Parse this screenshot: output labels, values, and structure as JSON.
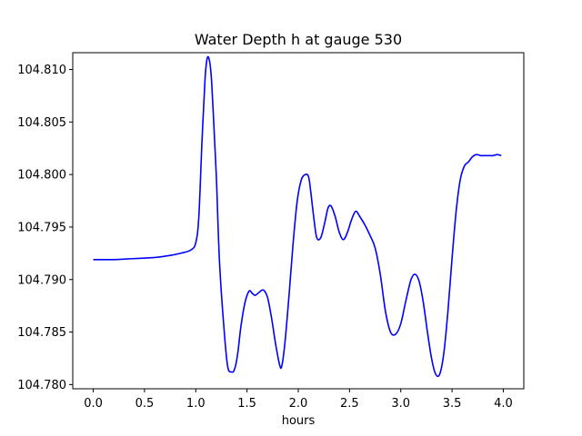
{
  "chart_data": {
    "type": "line",
    "title": "Water Depth h at gauge 530",
    "xlabel": "hours",
    "ylabel": "",
    "xlim": [
      -0.2,
      4.2
    ],
    "ylim": [
      104.7796,
      104.8116
    ],
    "xticks": [
      0.0,
      0.5,
      1.0,
      1.5,
      2.0,
      2.5,
      3.0,
      3.5,
      4.0
    ],
    "xtick_labels": [
      "0.0",
      "0.5",
      "1.0",
      "1.5",
      "2.0",
      "2.5",
      "3.0",
      "3.5",
      "4.0"
    ],
    "yticks": [
      104.78,
      104.785,
      104.79,
      104.795,
      104.8,
      104.805,
      104.81
    ],
    "ytick_labels": [
      "104.780",
      "104.785",
      "104.790",
      "104.795",
      "104.800",
      "104.805",
      "104.810"
    ],
    "grid": false,
    "series": [
      {
        "color": "#0000ff",
        "x": [
          0.0,
          0.2,
          0.4,
          0.6,
          0.75,
          0.85,
          0.95,
          1.0,
          1.03,
          1.06,
          1.09,
          1.11,
          1.13,
          1.15,
          1.17,
          1.2,
          1.23,
          1.27,
          1.31,
          1.35,
          1.38,
          1.41,
          1.44,
          1.48,
          1.52,
          1.55,
          1.58,
          1.62,
          1.66,
          1.7,
          1.74,
          1.78,
          1.82,
          1.84,
          1.87,
          1.91,
          1.95,
          1.99,
          2.03,
          2.07,
          2.1,
          2.12,
          2.15,
          2.18,
          2.22,
          2.26,
          2.29,
          2.32,
          2.36,
          2.4,
          2.44,
          2.48,
          2.52,
          2.56,
          2.6,
          2.65,
          2.7,
          2.75,
          2.8,
          2.85,
          2.9,
          2.95,
          3.0,
          3.05,
          3.1,
          3.14,
          3.18,
          3.22,
          3.26,
          3.3,
          3.34,
          3.38,
          3.42,
          3.46,
          3.5,
          3.54,
          3.58,
          3.62,
          3.66,
          3.7,
          3.74,
          3.78,
          3.82,
          3.86,
          3.9,
          3.94,
          3.98
        ],
        "values": [
          104.7919,
          104.7919,
          104.792,
          104.7921,
          104.7923,
          104.7925,
          104.7928,
          104.7935,
          104.796,
          104.803,
          104.809,
          104.811,
          104.811,
          104.8095,
          104.806,
          104.8,
          104.792,
          104.786,
          104.7818,
          104.7812,
          104.7815,
          104.783,
          104.7855,
          104.7878,
          104.7889,
          104.7887,
          104.7885,
          104.7888,
          104.789,
          104.7883,
          104.7863,
          104.7838,
          104.7818,
          104.7818,
          104.784,
          104.7885,
          104.7935,
          104.7975,
          104.7995,
          104.8,
          104.7998,
          104.7985,
          104.796,
          104.794,
          104.794,
          104.7955,
          104.7968,
          104.797,
          104.796,
          104.7945,
          104.7938,
          104.7945,
          104.7957,
          104.7965,
          104.796,
          104.7952,
          104.7942,
          104.793,
          104.7905,
          104.787,
          104.785,
          104.7848,
          104.7858,
          104.788,
          104.79,
          104.7905,
          104.7898,
          104.7878,
          104.785,
          104.7825,
          104.781,
          104.781,
          104.783,
          104.787,
          104.792,
          104.7965,
          104.7995,
          104.8008,
          104.8012,
          104.8017,
          104.8019,
          104.8018,
          104.8018,
          104.8018,
          104.8018,
          104.8019,
          104.8018
        ]
      }
    ]
  }
}
